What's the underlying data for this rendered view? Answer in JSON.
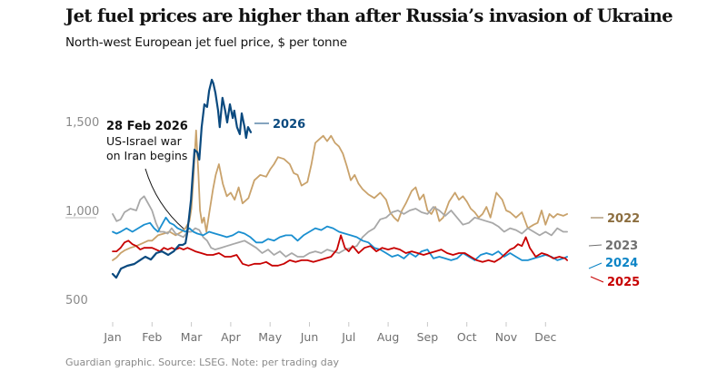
{
  "header": {
    "title": "Jet fuel prices are higher than after Russia’s invasion of Ukraine",
    "subtitle": "North-west European jet fuel price, $ per tonne"
  },
  "footer": {
    "source": "Guardian graphic. Source: LSEG. Note: per trading day"
  },
  "annotation": {
    "date": "28 Feb 2026",
    "line1": "US-Israel war",
    "line2": "on Iran begins"
  },
  "chart_data": {
    "type": "line",
    "title": "Jet fuel prices are higher than after Russia’s invasion of Ukraine",
    "subtitle": "North-west European jet fuel price, $ per tonne",
    "xlabel": "",
    "ylabel": "$ per tonne",
    "x_unit": "months since 1 Jan (0 = Jan, 11 = Dec)",
    "x_ticks": [
      "Jan",
      "Feb",
      "Mar",
      "Apr",
      "May",
      "Jun",
      "Jul",
      "Aug",
      "Sep",
      "Oct",
      "Nov",
      "Dec"
    ],
    "y_ticks": [
      500,
      1000,
      1500
    ],
    "y_tick_labels": [
      "500",
      "1,000",
      "1,500"
    ],
    "ylim": [
      500,
      1800
    ],
    "xlim": [
      0,
      11.7
    ],
    "grid": false,
    "legend": "inline labels at line ends (right)",
    "series": [
      {
        "name": "2022",
        "color": "#c9a26b",
        "label_color": "#8c6e3f",
        "x": [
          0,
          0.1,
          0.2,
          0.3,
          0.45,
          0.6,
          0.75,
          0.9,
          1.0,
          1.15,
          1.3,
          1.45,
          1.6,
          1.75,
          1.85,
          1.95,
          2.0,
          2.05,
          2.12,
          2.18,
          2.22,
          2.27,
          2.32,
          2.38,
          2.45,
          2.55,
          2.62,
          2.7,
          2.8,
          2.9,
          3.0,
          3.1,
          3.2,
          3.3,
          3.45,
          3.6,
          3.75,
          3.9,
          4.0,
          4.1,
          4.2,
          4.35,
          4.5,
          4.6,
          4.7,
          4.8,
          4.95,
          5.05,
          5.15,
          5.25,
          5.35,
          5.45,
          5.55,
          5.65,
          5.75,
          5.85,
          5.95,
          6.05,
          6.15,
          6.25,
          6.35,
          6.5,
          6.65,
          6.8,
          6.95,
          7.05,
          7.15,
          7.25,
          7.35,
          7.45,
          7.6,
          7.7,
          7.8,
          7.9,
          8.0,
          8.1,
          8.2,
          8.3,
          8.4,
          8.55,
          8.7,
          8.8,
          8.9,
          9.0,
          9.1,
          9.2,
          9.3,
          9.4,
          9.5,
          9.6,
          9.75,
          9.9,
          10.0,
          10.1,
          10.25,
          10.4,
          10.55,
          10.7,
          10.8,
          10.9,
          11.0,
          11.1,
          11.2,
          11.3,
          11.45,
          11.55
        ],
        "y": [
          720,
          735,
          760,
          775,
          790,
          800,
          815,
          830,
          830,
          860,
          870,
          880,
          860,
          880,
          900,
          940,
          1010,
          1180,
          1450,
          1200,
          1000,
          930,
          960,
          880,
          980,
          1120,
          1200,
          1260,
          1150,
          1080,
          1100,
          1060,
          1130,
          1040,
          1070,
          1170,
          1200,
          1190,
          1230,
          1260,
          1300,
          1290,
          1260,
          1210,
          1200,
          1140,
          1160,
          1260,
          1380,
          1400,
          1420,
          1390,
          1420,
          1380,
          1360,
          1320,
          1250,
          1170,
          1200,
          1150,
          1120,
          1090,
          1070,
          1100,
          1060,
          990,
          960,
          940,
          1000,
          1040,
          1110,
          1130,
          1060,
          1090,
          1000,
          980,
          1020,
          940,
          960,
          1050,
          1100,
          1060,
          1080,
          1050,
          1010,
          990,
          960,
          980,
          1020,
          960,
          1100,
          1060,
          1000,
          990,
          960,
          990,
          900,
          920,
          930,
          1000,
          920,
          980,
          960,
          980,
          970,
          980
        ]
      },
      {
        "name": "2023",
        "color": "#a8a8a8",
        "label_color": "#707070",
        "x": [
          0,
          0.1,
          0.2,
          0.3,
          0.45,
          0.6,
          0.7,
          0.8,
          0.9,
          1.0,
          1.1,
          1.2,
          1.3,
          1.4,
          1.5,
          1.6,
          1.7,
          1.8,
          1.9,
          2.0,
          2.1,
          2.2,
          2.3,
          2.4,
          2.5,
          2.6,
          2.75,
          2.9,
          3.05,
          3.2,
          3.35,
          3.5,
          3.65,
          3.8,
          3.95,
          4.1,
          4.25,
          4.4,
          4.55,
          4.7,
          4.85,
          5.0,
          5.15,
          5.3,
          5.45,
          5.6,
          5.75,
          5.9,
          6.05,
          6.2,
          6.35,
          6.5,
          6.65,
          6.8,
          6.95,
          7.1,
          7.25,
          7.4,
          7.55,
          7.7,
          7.85,
          8.0,
          8.15,
          8.3,
          8.45,
          8.6,
          8.75,
          8.9,
          9.05,
          9.2,
          9.35,
          9.5,
          9.65,
          9.8,
          9.95,
          10.1,
          10.25,
          10.4,
          10.55,
          10.7,
          10.85,
          11.0,
          11.15,
          11.3,
          11.45,
          11.55
        ],
        "y": [
          980,
          940,
          950,
          990,
          1010,
          1000,
          1060,
          1080,
          1040,
          1000,
          930,
          880,
          880,
          870,
          900,
          870,
          860,
          850,
          880,
          880,
          900,
          890,
          850,
          830,
          790,
          780,
          790,
          800,
          810,
          820,
          830,
          810,
          790,
          760,
          780,
          750,
          770,
          740,
          760,
          740,
          740,
          760,
          770,
          760,
          780,
          770,
          760,
          780,
          790,
          800,
          850,
          880,
          900,
          950,
          960,
          990,
          1000,
          980,
          1000,
          1010,
          990,
          980,
          1020,
          1000,
          970,
          1000,
          960,
          920,
          930,
          960,
          950,
          940,
          930,
          910,
          880,
          900,
          890,
          870,
          900,
          880,
          860,
          880,
          860,
          900,
          880,
          880
        ]
      },
      {
        "name": "2024",
        "color": "#1a8fd0",
        "label_color": "#0c84c6",
        "x": [
          0,
          0.1,
          0.2,
          0.35,
          0.5,
          0.65,
          0.8,
          0.95,
          1.05,
          1.15,
          1.25,
          1.35,
          1.45,
          1.55,
          1.65,
          1.75,
          1.85,
          1.95,
          2.05,
          2.15,
          2.3,
          2.45,
          2.6,
          2.75,
          2.9,
          3.05,
          3.2,
          3.35,
          3.5,
          3.65,
          3.8,
          3.95,
          4.1,
          4.25,
          4.4,
          4.55,
          4.7,
          4.85,
          5.0,
          5.15,
          5.3,
          5.45,
          5.6,
          5.75,
          5.9,
          6.05,
          6.2,
          6.35,
          6.5,
          6.65,
          6.8,
          6.95,
          7.1,
          7.25,
          7.4,
          7.55,
          7.7,
          7.85,
          8.0,
          8.15,
          8.3,
          8.45,
          8.6,
          8.75,
          8.9,
          9.05,
          9.2,
          9.35,
          9.5,
          9.65,
          9.8,
          9.95,
          10.1,
          10.25,
          10.4,
          10.55,
          10.7,
          10.85,
          11.0,
          11.15,
          11.3,
          11.45,
          11.55
        ],
        "y": [
          880,
          870,
          880,
          900,
          880,
          900,
          920,
          930,
          900,
          880,
          920,
          960,
          930,
          920,
          900,
          890,
          880,
          900,
          880,
          870,
          860,
          880,
          870,
          860,
          850,
          860,
          880,
          870,
          850,
          820,
          820,
          840,
          830,
          850,
          860,
          860,
          830,
          860,
          880,
          900,
          890,
          910,
          900,
          880,
          870,
          860,
          850,
          830,
          820,
          790,
          780,
          760,
          740,
          750,
          730,
          760,
          740,
          770,
          780,
          730,
          740,
          730,
          720,
          730,
          760,
          740,
          720,
          750,
          760,
          750,
          770,
          740,
          760,
          740,
          720,
          720,
          730,
          740,
          750,
          740,
          720,
          730,
          740
        ]
      },
      {
        "name": "2025",
        "color": "#c70000",
        "label_color": "#c70000",
        "x": [
          0,
          0.1,
          0.2,
          0.3,
          0.4,
          0.5,
          0.6,
          0.7,
          0.8,
          0.9,
          1.0,
          1.1,
          1.2,
          1.3,
          1.4,
          1.5,
          1.6,
          1.7,
          1.8,
          1.9,
          2.0,
          2.1,
          2.25,
          2.4,
          2.55,
          2.7,
          2.85,
          3.0,
          3.15,
          3.3,
          3.45,
          3.6,
          3.75,
          3.9,
          4.05,
          4.2,
          4.35,
          4.5,
          4.65,
          4.8,
          4.95,
          5.1,
          5.25,
          5.4,
          5.55,
          5.7,
          5.8,
          5.9,
          6.0,
          6.1,
          6.25,
          6.4,
          6.55,
          6.7,
          6.85,
          7.0,
          7.15,
          7.3,
          7.45,
          7.6,
          7.75,
          7.9,
          8.05,
          8.2,
          8.35,
          8.5,
          8.65,
          8.8,
          8.95,
          9.1,
          9.25,
          9.4,
          9.55,
          9.7,
          9.85,
          10.0,
          10.1,
          10.2,
          10.3,
          10.4,
          10.5,
          10.6,
          10.75,
          10.9,
          11.05,
          11.2,
          11.35,
          11.5,
          11.55
        ],
        "y": [
          770,
          770,
          790,
          820,
          830,
          810,
          800,
          780,
          790,
          790,
          790,
          780,
          770,
          790,
          780,
          790,
          780,
          790,
          780,
          790,
          780,
          770,
          760,
          750,
          750,
          760,
          740,
          740,
          750,
          700,
          690,
          700,
          700,
          710,
          690,
          690,
          700,
          720,
          710,
          720,
          720,
          710,
          720,
          730,
          740,
          780,
          860,
          790,
          770,
          800,
          760,
          790,
          800,
          770,
          790,
          780,
          790,
          780,
          760,
          770,
          760,
          750,
          760,
          770,
          780,
          760,
          750,
          760,
          760,
          740,
          720,
          710,
          720,
          710,
          730,
          760,
          780,
          790,
          810,
          800,
          850,
          790,
          740,
          760,
          750,
          730,
          740,
          730,
          720
        ]
      },
      {
        "name": "2026",
        "color": "#0b4a7f",
        "label_color": "#0b4a7f",
        "x": [
          0,
          0.09,
          0.21,
          0.37,
          0.55,
          0.72,
          0.83,
          0.97,
          1.11,
          1.25,
          1.41,
          1.55,
          1.69,
          1.78,
          1.85,
          1.89,
          1.94,
          1.99,
          2.03,
          2.08,
          2.15,
          2.2,
          2.26,
          2.33,
          2.4,
          2.45,
          2.52,
          2.56,
          2.61,
          2.68,
          2.72,
          2.79,
          2.86,
          2.91,
          2.98,
          3.05,
          3.09,
          3.16,
          3.23,
          3.28,
          3.35,
          3.39,
          3.44,
          3.51
        ],
        "y": [
          643,
          622,
          673,
          689,
          699,
          724,
          740,
          724,
          760,
          770,
          750,
          770,
          806,
          806,
          816,
          867,
          959,
          1061,
          1189,
          1342,
          1327,
          1286,
          1469,
          1597,
          1582,
          1673,
          1735,
          1714,
          1663,
          1561,
          1469,
          1633,
          1561,
          1495,
          1597,
          1520,
          1561,
          1469,
          1429,
          1546,
          1469,
          1408,
          1469,
          1440
        ]
      }
    ],
    "annotations": [
      {
        "x": 1.9,
        "target": "2026",
        "text": "28 Feb 2026 — US-Israel war on Iran begins"
      }
    ]
  }
}
